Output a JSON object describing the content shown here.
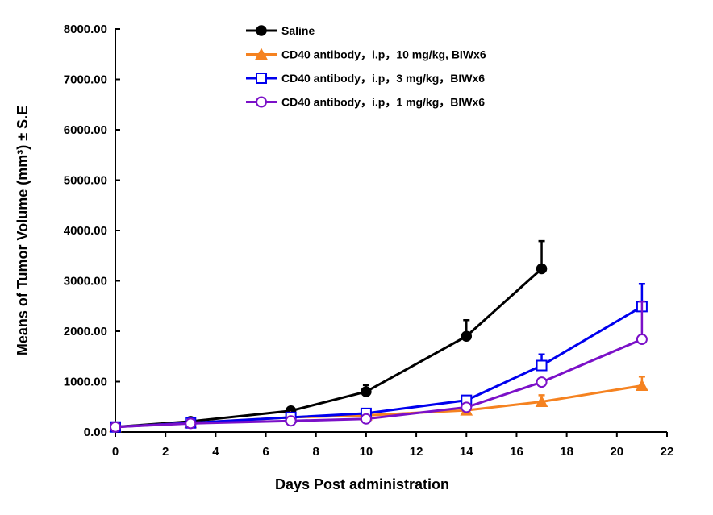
{
  "chart_data": {
    "type": "line",
    "title": "",
    "xlabel": "Days Post administration",
    "ylabel": "Means of Tumor Volume (mm³) ± S.E",
    "xlim": [
      0,
      22
    ],
    "ylim": [
      0,
      8000
    ],
    "x_ticks": [
      "0",
      "2",
      "4",
      "6",
      "8",
      "10",
      "12",
      "14",
      "16",
      "18",
      "20",
      "22"
    ],
    "y_ticks": [
      "0.00",
      "1000.00",
      "2000.00",
      "3000.00",
      "4000.00",
      "5000.00",
      "6000.00",
      "7000.00",
      "8000.00"
    ],
    "x_tick_values": [
      0,
      2,
      4,
      6,
      8,
      10,
      12,
      14,
      16,
      18,
      20,
      22
    ],
    "y_tick_values": [
      0,
      1000,
      2000,
      3000,
      4000,
      5000,
      6000,
      7000,
      8000
    ],
    "grid": false,
    "legend_position": "top-center",
    "series": [
      {
        "name": "Saline",
        "color": "#000000",
        "marker": "filled-circle",
        "x": [
          0,
          3,
          7,
          10,
          14,
          17
        ],
        "y": [
          100,
          210,
          420,
          800,
          1900,
          3240
        ],
        "err": [
          0,
          0,
          0,
          130,
          320,
          550
        ]
      },
      {
        "name": "CD40 antibody，i.p，10 mg/kg, BIWx6",
        "color": "#f58220",
        "marker": "filled-triangle",
        "x": [
          0,
          3,
          7,
          10,
          14,
          17,
          21
        ],
        "y": [
          100,
          180,
          290,
          330,
          430,
          600,
          920
        ],
        "err": [
          0,
          0,
          0,
          0,
          0,
          130,
          180
        ]
      },
      {
        "name": "CD40 antibody，i.p，3 mg/kg，BIWx6",
        "color": "#0000ee",
        "marker": "open-square",
        "x": [
          0,
          3,
          7,
          10,
          14,
          17,
          21
        ],
        "y": [
          100,
          180,
          290,
          370,
          630,
          1320,
          2490
        ],
        "err": [
          0,
          0,
          0,
          0,
          0,
          220,
          450
        ]
      },
      {
        "name": "CD40 antibody，i.p，1 mg/kg，BIWx6",
        "color": "#7b10c8",
        "marker": "open-circle",
        "x": [
          0,
          3,
          7,
          10,
          14,
          17,
          21
        ],
        "y": [
          100,
          170,
          220,
          260,
          490,
          990,
          1840
        ],
        "err": [
          0,
          0,
          0,
          0,
          0,
          0,
          750
        ]
      }
    ]
  }
}
